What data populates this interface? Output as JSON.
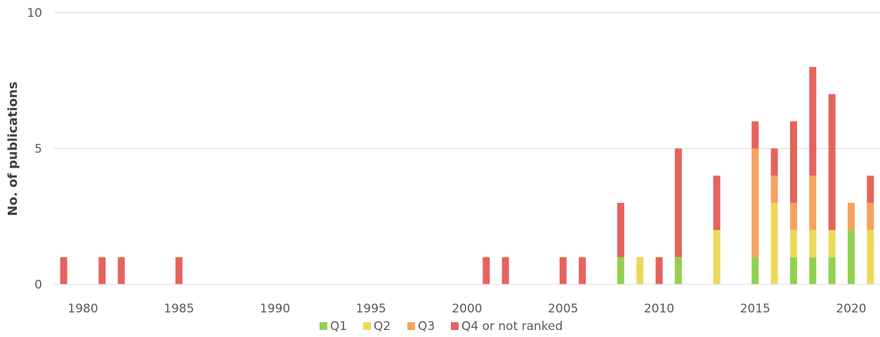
{
  "chart_data": {
    "type": "bar",
    "stacked": true,
    "title": "",
    "xlabel": "",
    "ylabel": "No. of publications",
    "ylim": [
      0,
      10
    ],
    "yticks": [
      0,
      5,
      10
    ],
    "xlim": [
      1978.5,
      2021.5
    ],
    "xticks": [
      1980,
      1985,
      1990,
      1995,
      2000,
      2005,
      2010,
      2015,
      2020
    ],
    "grid": true,
    "legend_position": "bottom",
    "colors": {
      "Q1": "#92d050",
      "Q2": "#ecd95a",
      "Q3": "#f5a25f",
      "Q4 or not ranked": "#e4645c"
    },
    "categories": [
      1979,
      1981,
      1982,
      1985,
      2001,
      2002,
      2005,
      2006,
      2008,
      2009,
      2010,
      2011,
      2013,
      2015,
      2016,
      2017,
      2018,
      2019,
      2020,
      2021
    ],
    "series": [
      {
        "name": "Q1",
        "values": [
          0,
          0,
          0,
          0,
          0,
          0,
          0,
          0,
          1,
          0,
          0,
          1,
          0,
          1,
          0,
          1,
          1,
          1,
          2,
          0
        ]
      },
      {
        "name": "Q2",
        "values": [
          0,
          0,
          0,
          0,
          0,
          0,
          0,
          0,
          0,
          1,
          0,
          0,
          2,
          0,
          3,
          1,
          1,
          1,
          0,
          2
        ]
      },
      {
        "name": "Q3",
        "values": [
          0,
          0,
          0,
          0,
          0,
          0,
          0,
          0,
          0,
          0,
          0,
          0,
          0,
          4,
          1,
          1,
          2,
          0,
          1,
          1
        ]
      },
      {
        "name": "Q4 or not ranked",
        "values": [
          1,
          1,
          1,
          1,
          1,
          1,
          1,
          1,
          2,
          0,
          1,
          4,
          2,
          1,
          1,
          3,
          4,
          5,
          0,
          1
        ]
      }
    ]
  }
}
